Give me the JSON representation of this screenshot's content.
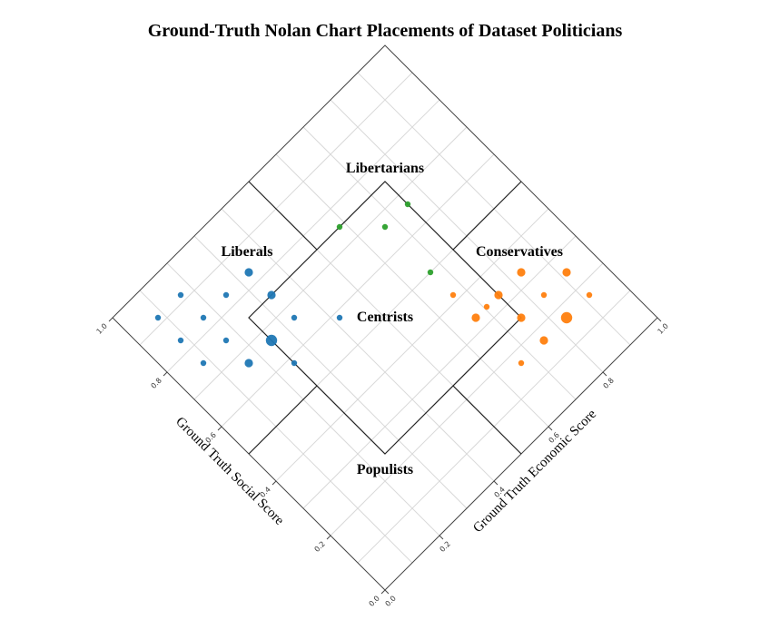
{
  "chart_data": {
    "type": "scatter",
    "title": "Ground-Truth Nolan Chart Placements of Dataset Politicians",
    "xlabel": "Ground Truth Economic Score",
    "ylabel": "Ground Truth Social Score",
    "xlim": [
      0,
      1
    ],
    "ylim": [
      0,
      1
    ],
    "ticks": [
      "0.0",
      "0.2",
      "0.4",
      "0.6",
      "0.8",
      "1.0"
    ],
    "grid": true,
    "regions": [
      {
        "name": "Libertarians",
        "x": 0.5,
        "y": 0.5
      },
      {
        "name": "Liberals",
        "x": 0.17,
        "y": 0.83
      },
      {
        "name": "Centrists",
        "x": 0.5,
        "y": 0.5
      },
      {
        "name": "Conservatives",
        "x": 0.83,
        "y": 0.17
      },
      {
        "name": "Populists",
        "x": 0.17,
        "y": 0.17
      }
    ],
    "series": [
      {
        "color": "#1f77b4",
        "points": [
          {
            "x": 0.15,
            "y": 0.85,
            "size": 1
          },
          {
            "x": 0.15,
            "y": 0.75,
            "size": 1
          },
          {
            "x": 0.15,
            "y": 0.65,
            "size": 1
          },
          {
            "x": 0.2,
            "y": 0.8,
            "size": 1
          },
          {
            "x": 0.2,
            "y": 0.7,
            "size": 1
          },
          {
            "x": 0.25,
            "y": 0.85,
            "size": 1
          },
          {
            "x": 0.25,
            "y": 0.75,
            "size": 2
          },
          {
            "x": 0.25,
            "y": 0.65,
            "size": 2
          },
          {
            "x": 0.25,
            "y": 0.55,
            "size": 1
          },
          {
            "x": 0.3,
            "y": 0.8,
            "size": 2
          },
          {
            "x": 0.3,
            "y": 0.7,
            "size": 3
          },
          {
            "x": 0.35,
            "y": 0.75,
            "size": 1
          },
          {
            "x": 0.35,
            "y": 0.65,
            "size": 1
          },
          {
            "x": 0.5,
            "y": 0.75,
            "size": 1
          }
        ]
      },
      {
        "color": "#2ca02c",
        "points": [
          {
            "x": 0.5,
            "y": 0.25,
            "size": 1
          },
          {
            "x": 0.55,
            "y": 0.35,
            "size": 1
          },
          {
            "x": 0.65,
            "y": 0.4,
            "size": 1
          },
          {
            "x": 0.65,
            "y": 0.6,
            "size": 1
          }
        ]
      },
      {
        "color": "#ff7f0e",
        "points": [
          {
            "x": 0.65,
            "y": 0.35,
            "size": 1
          },
          {
            "x": 0.7,
            "y": 0.25,
            "size": 1
          },
          {
            "x": 0.75,
            "y": 0.35,
            "size": 2
          },
          {
            "x": 0.75,
            "y": 0.25,
            "size": 2
          },
          {
            "x": 0.8,
            "y": 0.3,
            "size": 1
          },
          {
            "x": 0.8,
            "y": 0.2,
            "size": 2
          },
          {
            "x": 0.85,
            "y": 0.35,
            "size": 1
          },
          {
            "x": 0.85,
            "y": 0.25,
            "size": 1
          },
          {
            "x": 0.85,
            "y": 0.15,
            "size": 1
          },
          {
            "x": 0.85,
            "y": 0.05,
            "size": 1
          },
          {
            "x": 0.9,
            "y": 0.3,
            "size": 2
          },
          {
            "x": 0.95,
            "y": 0.25,
            "size": 1
          },
          {
            "x": 0.95,
            "y": 0.15,
            "size": 2
          },
          {
            "x": 0.95,
            "y": 0.05,
            "size": 3
          },
          {
            "x": 1.0,
            "y": 0.1,
            "size": 1
          }
        ]
      }
    ]
  }
}
